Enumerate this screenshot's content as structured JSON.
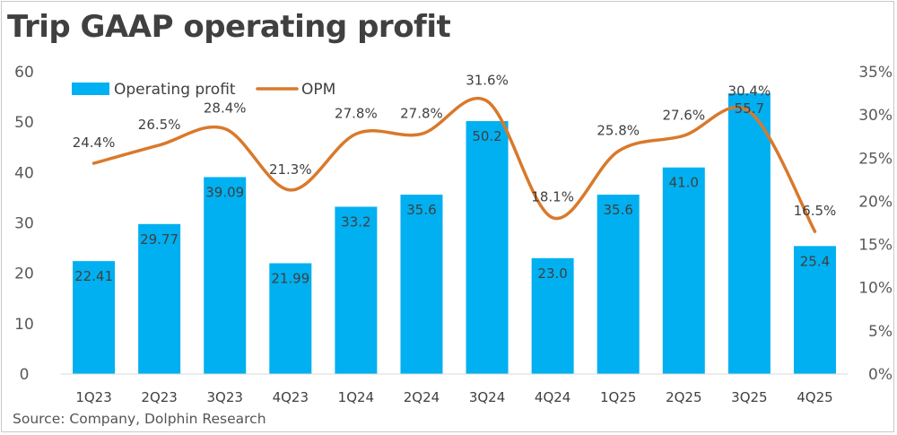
{
  "page_title": "Trip GAAP operating profit",
  "source": "Source: Company, Dolphin Research",
  "colors": {
    "bar": "#00B0F0",
    "line": "#D9792B",
    "text": "#404040"
  },
  "chart_data": {
    "type": "bar",
    "title": "Trip GAAP operating profit",
    "categories": [
      "1Q23",
      "2Q23",
      "3Q23",
      "4Q23",
      "1Q24",
      "2Q24",
      "3Q24",
      "4Q24",
      "1Q25",
      "2Q25",
      "3Q25",
      "4Q25"
    ],
    "series": [
      {
        "name": "Operating profit",
        "type": "bar",
        "axis": "left",
        "values": [
          22.41,
          29.77,
          39.09,
          21.99,
          33.2,
          35.6,
          50.2,
          23.0,
          35.6,
          41.0,
          55.7,
          25.4
        ],
        "labels": [
          "22.41",
          "29.77",
          "39.09",
          "21.99",
          "33.2",
          "35.6",
          "50.2",
          "23.0",
          "35.6",
          "41.0",
          "55.7",
          "25.4"
        ]
      },
      {
        "name": "OPM",
        "type": "line",
        "axis": "right",
        "values": [
          24.4,
          26.5,
          28.4,
          21.3,
          27.8,
          27.8,
          31.6,
          18.1,
          25.8,
          27.6,
          30.4,
          16.5
        ],
        "labels": [
          "24.4%",
          "26.5%",
          "28.4%",
          "21.3%",
          "27.8%",
          "27.8%",
          "31.6%",
          "18.1%",
          "25.8%",
          "27.6%",
          "30.4%",
          "16.5%"
        ]
      }
    ],
    "y_left": {
      "lim": [
        0,
        60
      ],
      "ticks": [
        0,
        10,
        20,
        30,
        40,
        50,
        60
      ],
      "tick_labels": [
        "0",
        "10",
        "20",
        "30",
        "40",
        "50",
        "60"
      ]
    },
    "y_right": {
      "lim": [
        0,
        35
      ],
      "ticks": [
        0,
        5,
        10,
        15,
        20,
        25,
        30,
        35
      ],
      "tick_labels": [
        "0%",
        "5%",
        "10%",
        "15%",
        "20%",
        "25%",
        "30%",
        "35%"
      ]
    },
    "legend_position": "top-left",
    "grid": false
  }
}
